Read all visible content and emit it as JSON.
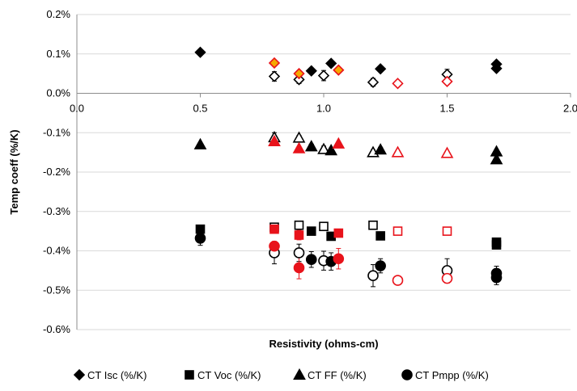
{
  "chart_data": {
    "type": "scatter",
    "title": "",
    "xlabel": "Resistivity (ohms-cm)",
    "ylabel": "Temp coeff (%/K)",
    "xlim": [
      0.0,
      2.0
    ],
    "ylim": [
      -0.6,
      0.2
    ],
    "x_ticks": [
      0.0,
      0.5,
      1.0,
      1.5,
      2.0
    ],
    "x_tick_labels": [
      "0.0",
      "0.5",
      "1.0",
      "1.5",
      "2.0"
    ],
    "y_ticks": [
      0.2,
      0.1,
      0.0,
      -0.1,
      -0.2,
      -0.3,
      -0.4,
      -0.5,
      -0.6
    ],
    "y_tick_labels": [
      "0.2%",
      "0.1%",
      "0.0%",
      "-0.1%",
      "-0.2%",
      "-0.3%",
      "-0.4%",
      "-0.5%",
      "-0.6%"
    ],
    "grid": "horizontal",
    "legend_position": "bottom",
    "legend": [
      {
        "label": "CT Isc (%/K)",
        "marker": "diamond"
      },
      {
        "label": "CT Voc (%/K)",
        "marker": "square"
      },
      {
        "label": "CT FF (%/K)",
        "marker": "triangle"
      },
      {
        "label": "CT Pmpp (%/K)",
        "marker": "circle"
      }
    ],
    "colors": {
      "black": "#000000",
      "red": "#e8131b",
      "orange_fill": "#f5a800",
      "white": "#ffffff"
    },
    "series": [
      {
        "name": "CT Isc (%/K)",
        "marker": "diamond",
        "points": [
          {
            "x": 0.5,
            "y": 0.104,
            "style": "filled-black",
            "err": 0.004
          },
          {
            "x": 0.8,
            "y": 0.043,
            "style": "open-black",
            "err": 0.012
          },
          {
            "x": 0.9,
            "y": 0.035,
            "style": "open-black",
            "err": 0.01
          },
          {
            "x": 0.95,
            "y": 0.057,
            "style": "filled-black",
            "err": 0.006
          },
          {
            "x": 1.0,
            "y": 0.045,
            "style": "open-black",
            "err": 0.013
          },
          {
            "x": 1.03,
            "y": 0.076,
            "style": "filled-black",
            "err": 0.004
          },
          {
            "x": 1.2,
            "y": 0.028,
            "style": "open-black",
            "err": 0.01
          },
          {
            "x": 1.23,
            "y": 0.062,
            "style": "filled-black",
            "err": 0.004
          },
          {
            "x": 1.5,
            "y": 0.048,
            "style": "open-black",
            "err": 0.013
          },
          {
            "x": 1.7,
            "y": 0.074,
            "style": "filled-black",
            "err": 0.004
          },
          {
            "x": 1.7,
            "y": 0.063,
            "style": "filled-black",
            "err": 0.004
          },
          {
            "x": 0.8,
            "y": 0.077,
            "style": "orange-red",
            "err": 0
          },
          {
            "x": 0.9,
            "y": 0.05,
            "style": "orange-red",
            "err": 0
          },
          {
            "x": 1.06,
            "y": 0.059,
            "style": "orange-red",
            "err": 0
          },
          {
            "x": 1.3,
            "y": 0.025,
            "style": "open-red",
            "err": 0
          },
          {
            "x": 1.5,
            "y": 0.03,
            "style": "open-red",
            "err": 0
          }
        ]
      },
      {
        "name": "CT Voc (%/K)",
        "marker": "square",
        "points": [
          {
            "x": 0.5,
            "y": -0.345,
            "style": "filled-black",
            "err": 0.006
          },
          {
            "x": 0.8,
            "y": -0.34,
            "style": "open-black",
            "err": 0.004
          },
          {
            "x": 0.8,
            "y": -0.345,
            "style": "filled-red",
            "err": 0.006
          },
          {
            "x": 0.9,
            "y": -0.335,
            "style": "open-black",
            "err": 0.01
          },
          {
            "x": 0.9,
            "y": -0.36,
            "style": "filled-red",
            "err": 0.012
          },
          {
            "x": 0.95,
            "y": -0.35,
            "style": "filled-black",
            "err": 0.006
          },
          {
            "x": 1.0,
            "y": -0.338,
            "style": "open-black",
            "err": 0.006
          },
          {
            "x": 1.03,
            "y": -0.363,
            "style": "filled-black",
            "err": 0.008
          },
          {
            "x": 1.06,
            "y": -0.355,
            "style": "filled-red",
            "err": 0.01
          },
          {
            "x": 1.2,
            "y": -0.335,
            "style": "open-black",
            "err": 0.006
          },
          {
            "x": 1.23,
            "y": -0.362,
            "style": "filled-black",
            "err": 0.008
          },
          {
            "x": 1.3,
            "y": -0.35,
            "style": "open-red",
            "err": 0.004
          },
          {
            "x": 1.5,
            "y": -0.35,
            "style": "open-red",
            "err": 0.004
          },
          {
            "x": 1.7,
            "y": -0.378,
            "style": "filled-black",
            "err": 0.004
          },
          {
            "x": 1.7,
            "y": -0.385,
            "style": "filled-black",
            "err": 0.004
          }
        ]
      },
      {
        "name": "CT FF (%/K)",
        "marker": "triangle",
        "points": [
          {
            "x": 0.5,
            "y": -0.13,
            "style": "filled-black",
            "err": 0.004
          },
          {
            "x": 0.8,
            "y": -0.112,
            "style": "open-black",
            "err": 0.012
          },
          {
            "x": 0.8,
            "y": -0.122,
            "style": "filled-red",
            "err": 0.006
          },
          {
            "x": 0.9,
            "y": -0.113,
            "style": "open-black",
            "err": 0.006
          },
          {
            "x": 0.9,
            "y": -0.14,
            "style": "filled-red",
            "err": 0.004
          },
          {
            "x": 0.95,
            "y": -0.135,
            "style": "filled-black",
            "err": 0.006
          },
          {
            "x": 1.0,
            "y": -0.142,
            "style": "open-black",
            "err": 0.008
          },
          {
            "x": 1.03,
            "y": -0.145,
            "style": "filled-black",
            "err": 0.006
          },
          {
            "x": 1.06,
            "y": -0.128,
            "style": "filled-red",
            "err": 0.004
          },
          {
            "x": 1.2,
            "y": -0.15,
            "style": "open-black",
            "err": 0.006
          },
          {
            "x": 1.23,
            "y": -0.143,
            "style": "filled-black",
            "err": 0.006
          },
          {
            "x": 1.3,
            "y": -0.15,
            "style": "open-red",
            "err": 0.004
          },
          {
            "x": 1.5,
            "y": -0.152,
            "style": "open-red",
            "err": 0.004
          },
          {
            "x": 1.7,
            "y": -0.148,
            "style": "filled-black",
            "err": 0.004
          },
          {
            "x": 1.7,
            "y": -0.168,
            "style": "filled-black",
            "err": 0.004
          }
        ]
      },
      {
        "name": "CT Pmpp (%/K)",
        "marker": "circle",
        "points": [
          {
            "x": 0.5,
            "y": -0.368,
            "style": "filled-black",
            "err": 0.018
          },
          {
            "x": 0.8,
            "y": -0.405,
            "style": "open-black",
            "err": 0.028
          },
          {
            "x": 0.8,
            "y": -0.388,
            "style": "filled-red",
            "err": 0.012
          },
          {
            "x": 0.9,
            "y": -0.405,
            "style": "open-black",
            "err": 0.022
          },
          {
            "x": 0.9,
            "y": -0.443,
            "style": "filled-red",
            "err": 0.028
          },
          {
            "x": 0.95,
            "y": -0.422,
            "style": "filled-black",
            "err": 0.02
          },
          {
            "x": 1.0,
            "y": -0.425,
            "style": "open-black",
            "err": 0.024
          },
          {
            "x": 1.03,
            "y": -0.427,
            "style": "filled-black",
            "err": 0.022
          },
          {
            "x": 1.06,
            "y": -0.42,
            "style": "filled-red",
            "err": 0.026
          },
          {
            "x": 1.2,
            "y": -0.463,
            "style": "open-black",
            "err": 0.028
          },
          {
            "x": 1.23,
            "y": -0.438,
            "style": "filled-black",
            "err": 0.018
          },
          {
            "x": 1.3,
            "y": -0.475,
            "style": "open-red",
            "err": 0.01
          },
          {
            "x": 1.5,
            "y": -0.45,
            "style": "open-black",
            "err": 0.03
          },
          {
            "x": 1.5,
            "y": -0.47,
            "style": "open-red",
            "err": 0.012
          },
          {
            "x": 1.7,
            "y": -0.457,
            "style": "filled-black",
            "err": 0.018
          },
          {
            "x": 1.7,
            "y": -0.468,
            "style": "filled-black",
            "err": 0.018
          }
        ]
      }
    ]
  }
}
